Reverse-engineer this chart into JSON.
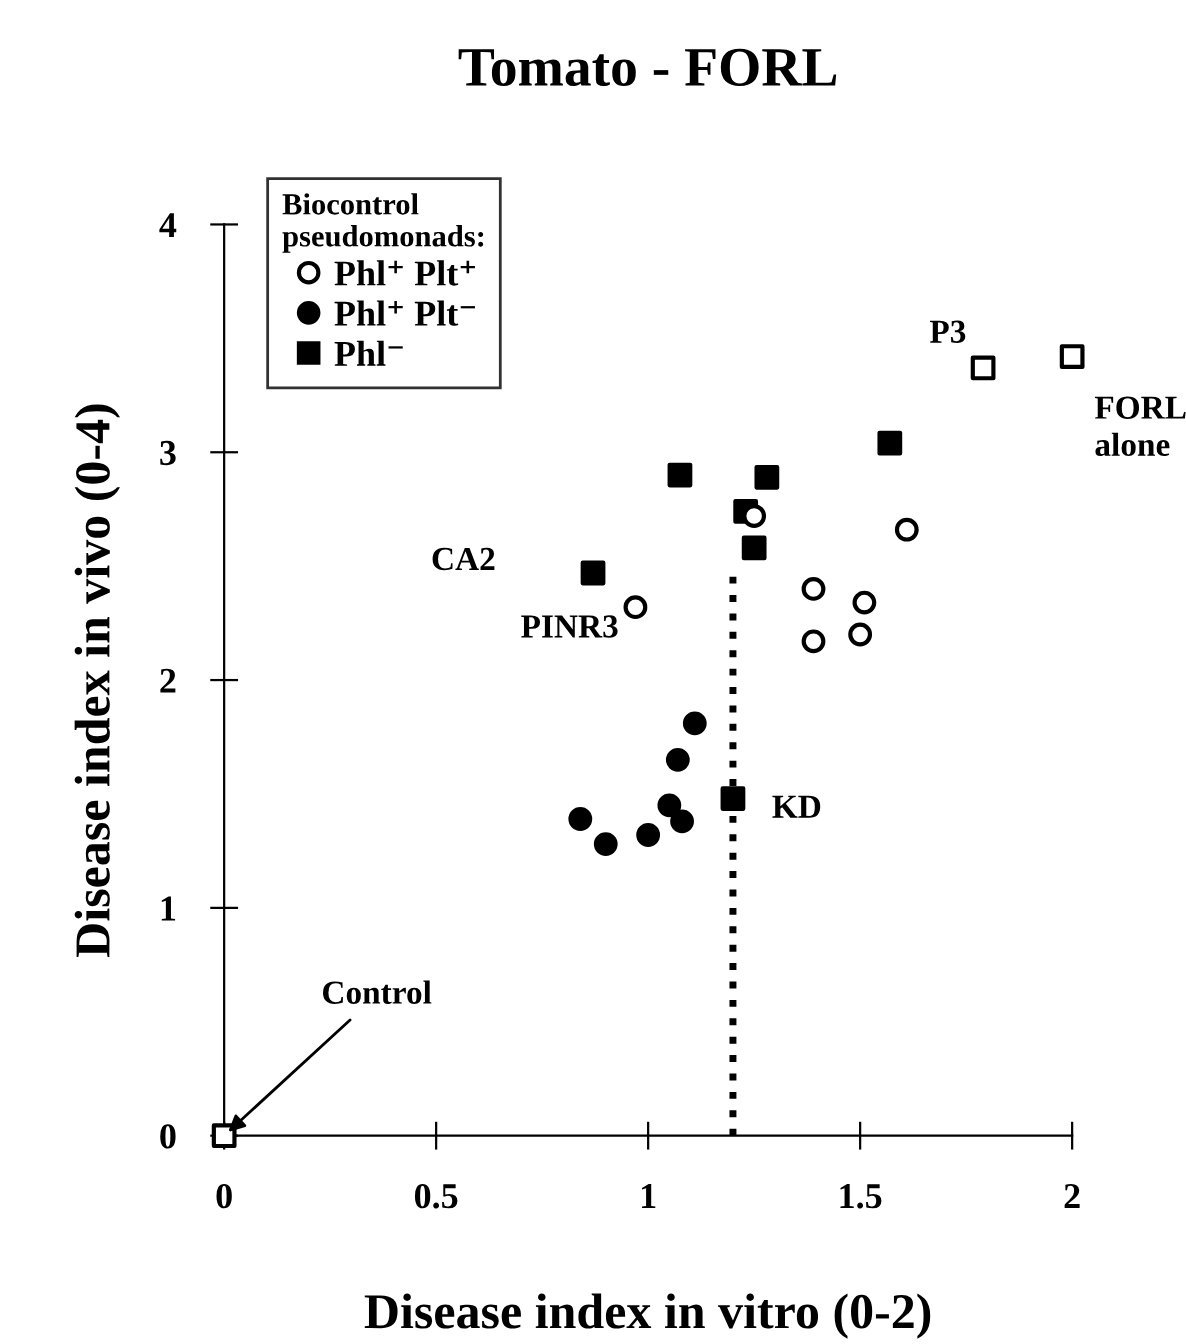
{
  "chart_data": {
    "type": "scatter",
    "title": "Tomato - FORL",
    "xlabel": "Disease index in vitro (0-2)",
    "ylabel": "Disease index in vivo (0-4)",
    "legend_title": "Biocontrol\npseudomonads:",
    "series": [
      {
        "name": "Phl⁺ Plt⁺",
        "color": "#ffffff",
        "marker": "circle",
        "x": [
          1.25,
          1.61,
          0.97,
          1.39,
          1.51,
          1.39,
          1.5
        ],
        "values": [
          2.72,
          2.66,
          2.32,
          2.4,
          2.34,
          2.17,
          2.2
        ]
      },
      {
        "name": "Phl⁺ Plt⁻",
        "color": "#000000",
        "marker": "circle",
        "x": [
          1.11,
          1.07,
          1.05,
          1.08,
          0.84,
          0.9,
          1.0
        ],
        "values": [
          1.81,
          1.65,
          1.45,
          1.38,
          1.39,
          1.28,
          1.32
        ]
      },
      {
        "name": "Phl⁻",
        "color": "#000000",
        "marker": "square",
        "x": [
          1.075,
          1.28,
          1.23,
          1.25,
          1.57,
          0.87,
          1.2
        ],
        "values": [
          2.9,
          2.89,
          2.74,
          2.58,
          3.04,
          2.47,
          1.48
        ]
      },
      {
        "color": "#ffffff",
        "marker": "square",
        "x": [
          1.79,
          2.0,
          0.0
        ],
        "values": [
          3.37,
          3.42,
          0.0
        ]
      },
      {
        "type": "line",
        "color": "#000000",
        "line_style": "dotted",
        "marker": "none",
        "x": [
          1.2,
          1.2
        ],
        "values": [
          0.0,
          2.47
        ]
      }
    ],
    "annotations": [
      {
        "text": "CA2",
        "x": 0.87,
        "y": 2.47
      },
      {
        "text": "PINR3",
        "x": 0.97,
        "y": 2.32
      },
      {
        "text": "KD",
        "x": 1.2,
        "y": 1.48
      },
      {
        "text": "P3",
        "x": 1.79,
        "y": 3.37
      },
      {
        "text": "FORL\nalone",
        "x": 2.0,
        "y": 3.42
      },
      {
        "text": "Control",
        "x": 0.0,
        "y": 0.0
      }
    ],
    "xlim": [
      0,
      2
    ],
    "ylim": [
      0,
      4
    ],
    "xticks": [
      0,
      0.5,
      1,
      1.5,
      2
    ],
    "yticks": [
      0,
      1,
      2,
      3,
      4
    ],
    "grid": false,
    "legend": "top left"
  }
}
